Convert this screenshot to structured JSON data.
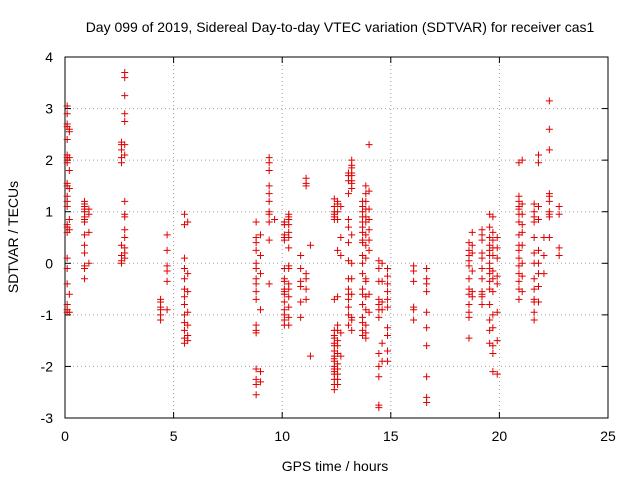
{
  "chart_data": {
    "type": "scatter",
    "title": "Day 099 of 2019, Sidereal Day-to-day VTEC variation (SDTVAR) for receiver cas1",
    "xlabel": "GPS time / hours",
    "ylabel": "SDTVAR / TECUs",
    "xlim": [
      0,
      25
    ],
    "ylim": [
      -3,
      4
    ],
    "xticks": [
      "0",
      "5",
      "10",
      "15",
      "20",
      "25"
    ],
    "yticks": [
      "-3",
      "-2",
      "-1",
      "0",
      "1",
      "2",
      "3",
      "4"
    ],
    "grid": true,
    "marker": "+",
    "color": "#e00000",
    "clusters": [
      {
        "x": 0.1,
        "values": [
          3.05,
          2.9,
          2.7,
          2.65,
          2.4,
          2.1,
          2.05,
          2.0,
          1.95,
          1.55,
          1.5,
          1.3,
          1.2,
          1.1,
          0.75,
          0.7,
          0.6,
          0.1,
          -0.1,
          -0.4,
          -0.8,
          -0.9,
          -0.95
        ]
      },
      {
        "x": 0.2,
        "values": [
          2.6,
          2.55,
          2.05,
          1.8,
          1.45,
          0.85,
          0.65,
          -0.6,
          -0.95
        ]
      },
      {
        "x": 0.9,
        "values": [
          1.2,
          1.15,
          1.1,
          1.05,
          1.0,
          0.9,
          0.85,
          0.8,
          0.55,
          0.35,
          0.2,
          -0.05,
          -0.1,
          -0.3
        ]
      },
      {
        "x": 1.1,
        "values": [
          1.05,
          0.95,
          0.6,
          0.0
        ]
      },
      {
        "x": 2.6,
        "values": [
          2.35,
          2.3,
          2.2,
          2.05,
          1.95,
          0.35,
          0.15,
          0.05,
          0.0
        ]
      },
      {
        "x": 2.75,
        "values": [
          3.7,
          3.6,
          3.25,
          2.9,
          2.75,
          2.3,
          2.1,
          1.2,
          0.95,
          0.9,
          0.65,
          0.5,
          0.3,
          0.2,
          0.1
        ]
      },
      {
        "x": 4.4,
        "values": [
          -0.7,
          -0.75,
          -0.85,
          -0.9,
          -1.0,
          -1.1
        ]
      },
      {
        "x": 4.7,
        "values": [
          0.55,
          0.25,
          -0.05,
          -0.15,
          -0.35,
          -0.9
        ]
      },
      {
        "x": 5.5,
        "values": [
          0.95,
          0.75,
          0.1,
          -0.1,
          -0.3,
          -0.5,
          -0.65,
          -0.8,
          -1.0,
          -1.15,
          -1.3,
          -1.45,
          -1.55
        ]
      },
      {
        "x": 5.65,
        "values": [
          0.8,
          -0.2,
          -0.55,
          -0.95,
          -1.2,
          -1.4,
          -1.5
        ]
      },
      {
        "x": 8.8,
        "values": [
          0.8,
          0.5,
          0.4,
          0.25,
          0.0,
          -0.1,
          -0.3,
          -0.4,
          -0.55,
          -0.7,
          -1.2,
          -1.3,
          -1.35,
          -2.05,
          -2.25,
          -2.35,
          -2.55
        ]
      },
      {
        "x": 9.0,
        "values": [
          0.55,
          0.15,
          -0.2,
          -0.9,
          -2.1,
          -2.3
        ]
      },
      {
        "x": 9.4,
        "values": [
          2.05,
          1.95,
          1.8,
          1.5,
          1.35,
          1.2,
          1.0,
          0.95,
          0.8,
          0.45,
          -0.4
        ]
      },
      {
        "x": 9.65,
        "values": [
          0.85
        ]
      },
      {
        "x": 10.1,
        "values": [
          0.8,
          0.75,
          0.55,
          0.5,
          0.45,
          -0.1,
          -0.3,
          -0.35,
          -0.5,
          -0.55,
          -0.6,
          -0.75,
          -0.9,
          -1.0,
          -1.1,
          -1.2
        ]
      },
      {
        "x": 10.3,
        "values": [
          0.95,
          0.9,
          0.85,
          0.75,
          0.6,
          0.5,
          0.3,
          -0.05,
          -0.1,
          -0.4,
          -0.5,
          -0.65,
          -0.85,
          -1.05,
          -1.2
        ]
      },
      {
        "x": 10.85,
        "values": [
          0.15,
          -0.1,
          -0.35,
          -0.45,
          -0.75,
          -1.05
        ]
      },
      {
        "x": 11.1,
        "values": [
          1.65,
          1.55,
          1.5,
          -0.2,
          -0.3,
          -0.5,
          -0.7
        ]
      },
      {
        "x": 11.3,
        "values": [
          0.35,
          -1.8
        ]
      },
      {
        "x": 12.4,
        "values": [
          1.25,
          1.1,
          1.0,
          0.95,
          0.9,
          0.85,
          -0.7,
          -1.3,
          -1.4,
          -1.45,
          -1.55,
          -1.6,
          -1.7,
          -1.8,
          -1.85,
          -1.9,
          -2.0,
          -2.05,
          -2.1,
          -2.15,
          -2.25,
          -2.35,
          -2.45
        ]
      },
      {
        "x": 12.55,
        "values": [
          1.2,
          1.15,
          1.0,
          0.85,
          0.25,
          -0.65,
          -1.2,
          -1.3,
          -1.5,
          -1.6,
          -1.75,
          -1.95,
          -2.05,
          -2.15,
          -2.25,
          -2.35
        ]
      },
      {
        "x": 12.7,
        "values": [
          1.1,
          0.5,
          0.15,
          -1.35,
          -1.8
        ]
      },
      {
        "x": 13.05,
        "values": [
          1.75,
          1.7,
          1.6,
          1.35,
          0.85,
          0.7,
          0.4,
          0.05,
          -0.3,
          -0.5,
          -0.6,
          -0.7,
          -0.85,
          -1.0,
          -1.2
        ]
      },
      {
        "x": 13.2,
        "values": [
          2.0,
          1.9,
          1.85,
          1.75,
          1.7,
          1.6,
          1.55,
          1.45,
          0.55,
          0.0,
          -0.3,
          -0.6,
          -1.05,
          -1.1,
          -1.3
        ]
      },
      {
        "x": 13.7,
        "values": [
          1.2,
          1.1,
          1.0,
          0.9,
          0.8,
          0.7,
          0.6,
          0.45,
          0.4,
          0.15,
          0.0,
          -0.2,
          -0.5,
          -0.6,
          -0.8,
          -1.05,
          -1.15,
          -1.3,
          -1.4
        ]
      },
      {
        "x": 13.85,
        "values": [
          1.5,
          1.35,
          1.2,
          1.05,
          0.9,
          0.8,
          0.55,
          0.35,
          0.1,
          -0.3,
          -0.35,
          -0.65,
          -0.9,
          -1.2,
          -1.35,
          -1.45
        ]
      },
      {
        "x": 14.0,
        "values": [
          2.3,
          1.4,
          1.05,
          0.85,
          0.65,
          0.45,
          0.25,
          -0.6,
          -0.95
        ]
      },
      {
        "x": 14.45,
        "values": [
          0.05,
          -0.1,
          -0.35,
          -0.7,
          -0.8,
          -0.9,
          -1.05,
          -1.75,
          -2.0,
          -2.2,
          -2.75,
          -2.8
        ]
      },
      {
        "x": 14.6,
        "values": [
          0.0,
          -0.35,
          -0.75,
          -0.9,
          -1.55,
          -1.9
        ]
      },
      {
        "x": 14.85,
        "values": [
          -0.1,
          -0.25,
          -0.4,
          -0.55,
          -0.7,
          -0.85,
          -1.25,
          -1.4,
          -1.7,
          -1.9
        ]
      },
      {
        "x": 16.05,
        "values": [
          -0.05,
          -0.15,
          -0.35,
          -0.85,
          -0.9,
          -1.1
        ]
      },
      {
        "x": 16.65,
        "values": [
          -0.1,
          -0.3,
          -0.4,
          -0.55,
          -0.95,
          -1.25,
          -1.6,
          -2.2,
          -2.6,
          -2.7
        ]
      },
      {
        "x": 18.6,
        "values": [
          0.4,
          0.25,
          0.15,
          0.05,
          -0.05,
          -0.3,
          -0.5,
          -0.6,
          -0.8,
          -0.95,
          -1.05,
          -1.45
        ]
      },
      {
        "x": 18.75,
        "values": [
          0.6,
          0.35,
          0.2,
          -0.15,
          -0.55,
          -0.65
        ]
      },
      {
        "x": 19.2,
        "values": [
          0.65,
          0.55,
          0.45,
          0.2,
          0.1,
          -0.1,
          -0.3,
          -0.55,
          -0.6,
          -0.65,
          -0.8
        ]
      },
      {
        "x": 19.55,
        "values": [
          0.95,
          0.7,
          0.5,
          0.35,
          0.25,
          0.15,
          0.0,
          -0.1,
          -0.2,
          -0.35,
          -0.5,
          -0.8,
          -1.1,
          -1.3,
          -1.55
        ]
      },
      {
        "x": 19.7,
        "values": [
          0.9,
          0.6,
          0.45,
          0.3,
          0.15,
          -0.15,
          -0.3,
          -0.55,
          -1.0,
          -1.25,
          -1.6,
          -1.75,
          -2.1
        ]
      },
      {
        "x": 19.9,
        "values": [
          0.5,
          0.3,
          0.1,
          -0.25,
          -0.4,
          -0.95,
          -1.5,
          -2.15
        ]
      },
      {
        "x": 20.9,
        "values": [
          1.95,
          1.3,
          1.2,
          1.1,
          1.05,
          0.95,
          0.8,
          0.55,
          0.35,
          0.25,
          0.1,
          -0.05,
          -0.2,
          -0.35,
          -0.5,
          -0.7
        ]
      },
      {
        "x": 21.05,
        "values": [
          2.0,
          1.15,
          0.95,
          0.75,
          0.6,
          0.35,
          0.0,
          -0.25,
          -0.55
        ]
      },
      {
        "x": 21.6,
        "values": [
          1.15,
          1.0,
          0.9,
          0.8,
          0.5,
          0.2,
          0.0,
          -0.3,
          -0.5,
          -0.7,
          -0.75,
          -0.95,
          -1.1
        ]
      },
      {
        "x": 21.8,
        "values": [
          2.1,
          1.95,
          1.1,
          0.85,
          0.25,
          0.0,
          -0.2,
          -0.45,
          -0.75
        ]
      },
      {
        "x": 22.05,
        "values": [
          0.5,
          0.15,
          -0.2
        ]
      },
      {
        "x": 22.3,
        "values": [
          3.15,
          2.6,
          2.2,
          1.35,
          1.3,
          1.2,
          1.0,
          0.95,
          0.9,
          0.5
        ]
      },
      {
        "x": 22.75,
        "values": [
          1.1,
          0.95,
          0.3,
          0.15
        ]
      }
    ]
  }
}
